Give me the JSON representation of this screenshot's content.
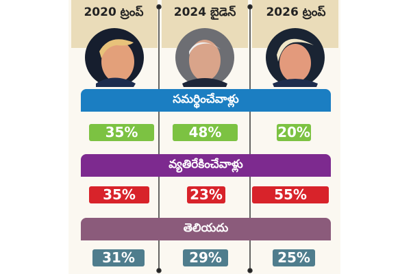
{
  "header": {
    "columns": [
      "2020 ట్రంప్",
      "2024 బైడెన్",
      "2026 ట్రంప్"
    ]
  },
  "sections": [
    {
      "label": "సమర్థించేవాళ్లు",
      "values": [
        "35%",
        "48%",
        "20%"
      ]
    },
    {
      "label": "వ్యతిరేకించేవాళ్లు",
      "values": [
        "35%",
        "23%",
        "55%"
      ]
    },
    {
      "label": "తెలియదు",
      "values": [
        "31%",
        "29%",
        "25%"
      ]
    }
  ]
}
